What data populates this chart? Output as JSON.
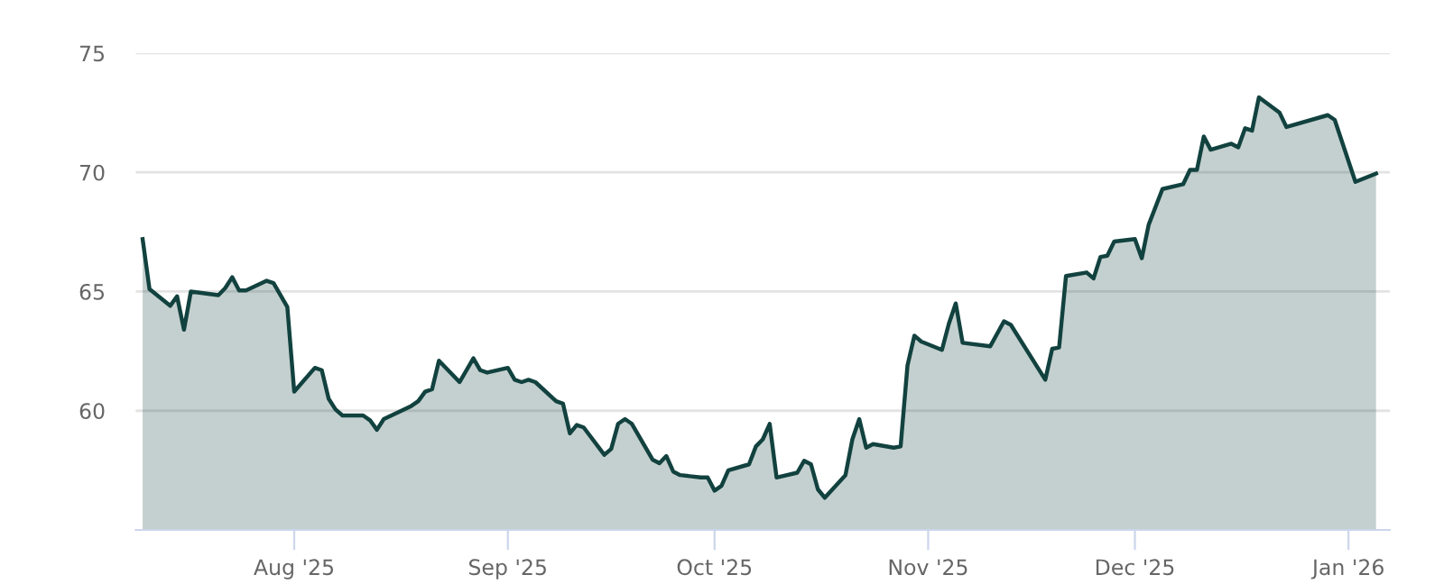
{
  "chart_data": {
    "type": "area",
    "x": [
      "2025-07-10",
      "2025-07-11",
      "2025-07-14",
      "2025-07-15",
      "2025-07-16",
      "2025-07-17",
      "2025-07-21",
      "2025-07-22",
      "2025-07-23",
      "2025-07-24",
      "2025-07-25",
      "2025-07-28",
      "2025-07-29",
      "2025-07-31",
      "2025-08-01",
      "2025-08-04",
      "2025-08-05",
      "2025-08-06",
      "2025-08-07",
      "2025-08-08",
      "2025-08-11",
      "2025-08-12",
      "2025-08-13",
      "2025-08-14",
      "2025-08-18",
      "2025-08-19",
      "2025-08-20",
      "2025-08-21",
      "2025-08-22",
      "2025-08-25",
      "2025-08-27",
      "2025-08-28",
      "2025-08-29",
      "2025-09-01",
      "2025-09-02",
      "2025-09-03",
      "2025-09-04",
      "2025-09-05",
      "2025-09-08",
      "2025-09-09",
      "2025-09-10",
      "2025-09-11",
      "2025-09-12",
      "2025-09-15",
      "2025-09-16",
      "2025-09-17",
      "2025-09-18",
      "2025-09-19",
      "2025-09-22",
      "2025-09-23",
      "2025-09-24",
      "2025-09-25",
      "2025-09-26",
      "2025-09-29",
      "2025-09-30",
      "2025-10-01",
      "2025-10-02",
      "2025-10-03",
      "2025-10-06",
      "2025-10-07",
      "2025-10-08",
      "2025-10-09",
      "2025-10-10",
      "2025-10-13",
      "2025-10-14",
      "2025-10-15",
      "2025-10-16",
      "2025-10-17",
      "2025-10-20",
      "2025-10-21",
      "2025-10-22",
      "2025-10-23",
      "2025-10-24",
      "2025-10-27",
      "2025-10-28",
      "2025-10-29",
      "2025-10-30",
      "2025-10-31",
      "2025-11-03",
      "2025-11-04",
      "2025-11-05",
      "2025-11-06",
      "2025-11-10",
      "2025-11-12",
      "2025-11-13",
      "2025-11-18",
      "2025-11-19",
      "2025-11-20",
      "2025-11-21",
      "2025-11-24",
      "2025-11-25",
      "2025-11-26",
      "2025-11-27",
      "2025-11-28",
      "2025-12-01",
      "2025-12-02",
      "2025-12-03",
      "2025-12-05",
      "2025-12-08",
      "2025-12-09",
      "2025-12-10",
      "2025-12-11",
      "2025-12-12",
      "2025-12-15",
      "2025-12-16",
      "2025-12-17",
      "2025-12-18",
      "2025-12-19",
      "2025-12-22",
      "2025-12-23",
      "2025-12-29",
      "2025-12-30",
      "2026-01-02",
      "2026-01-05"
    ],
    "series": [
      {
        "color": "#12423f",
        "values": [
          67.2,
          65.1,
          64.4,
          64.8,
          63.4,
          65.0,
          64.85,
          65.15,
          65.6,
          65.05,
          65.05,
          65.45,
          65.35,
          64.35,
          60.8,
          61.8,
          61.7,
          60.5,
          60.05,
          59.8,
          59.8,
          59.6,
          59.2,
          59.65,
          60.2,
          60.4,
          60.8,
          60.9,
          62.1,
          61.2,
          62.2,
          61.7,
          61.6,
          61.8,
          61.3,
          61.2,
          61.3,
          61.2,
          60.4,
          60.3,
          59.05,
          59.4,
          59.3,
          58.15,
          58.4,
          59.45,
          59.65,
          59.45,
          57.95,
          57.8,
          58.1,
          57.45,
          57.3,
          57.2,
          57.2,
          56.65,
          56.85,
          57.5,
          57.75,
          58.5,
          58.8,
          59.45,
          57.2,
          57.4,
          57.9,
          57.75,
          56.7,
          56.35,
          57.3,
          58.8,
          59.65,
          58.45,
          58.6,
          58.45,
          58.5,
          61.9,
          63.15,
          62.9,
          62.55,
          63.65,
          64.5,
          62.85,
          62.7,
          63.75,
          63.6,
          61.3,
          62.6,
          62.65,
          65.65,
          65.8,
          65.55,
          66.45,
          66.5,
          67.1,
          67.2,
          66.4,
          67.8,
          69.3,
          69.5,
          70.1,
          70.1,
          71.5,
          70.95,
          71.2,
          71.05,
          71.85,
          71.75,
          73.15,
          72.5,
          71.9,
          72.4,
          72.2,
          69.6,
          69.95
        ]
      }
    ],
    "xlim": [
      "2025-07-09",
      "2026-01-07"
    ],
    "xticks": [
      {
        "value": "2025-08-01",
        "label": "Aug '25"
      },
      {
        "value": "2025-09-01",
        "label": "Sep '25"
      },
      {
        "value": "2025-10-01",
        "label": "Oct '25"
      },
      {
        "value": "2025-11-01",
        "label": "Nov '25"
      },
      {
        "value": "2025-12-01",
        "label": "Dec '25"
      },
      {
        "value": "2026-01-01",
        "label": "Jan '26"
      }
    ],
    "ylim": [
      55,
      75
    ],
    "yticks": [
      60,
      65,
      70,
      75
    ],
    "grid": "y",
    "legend": false
  }
}
